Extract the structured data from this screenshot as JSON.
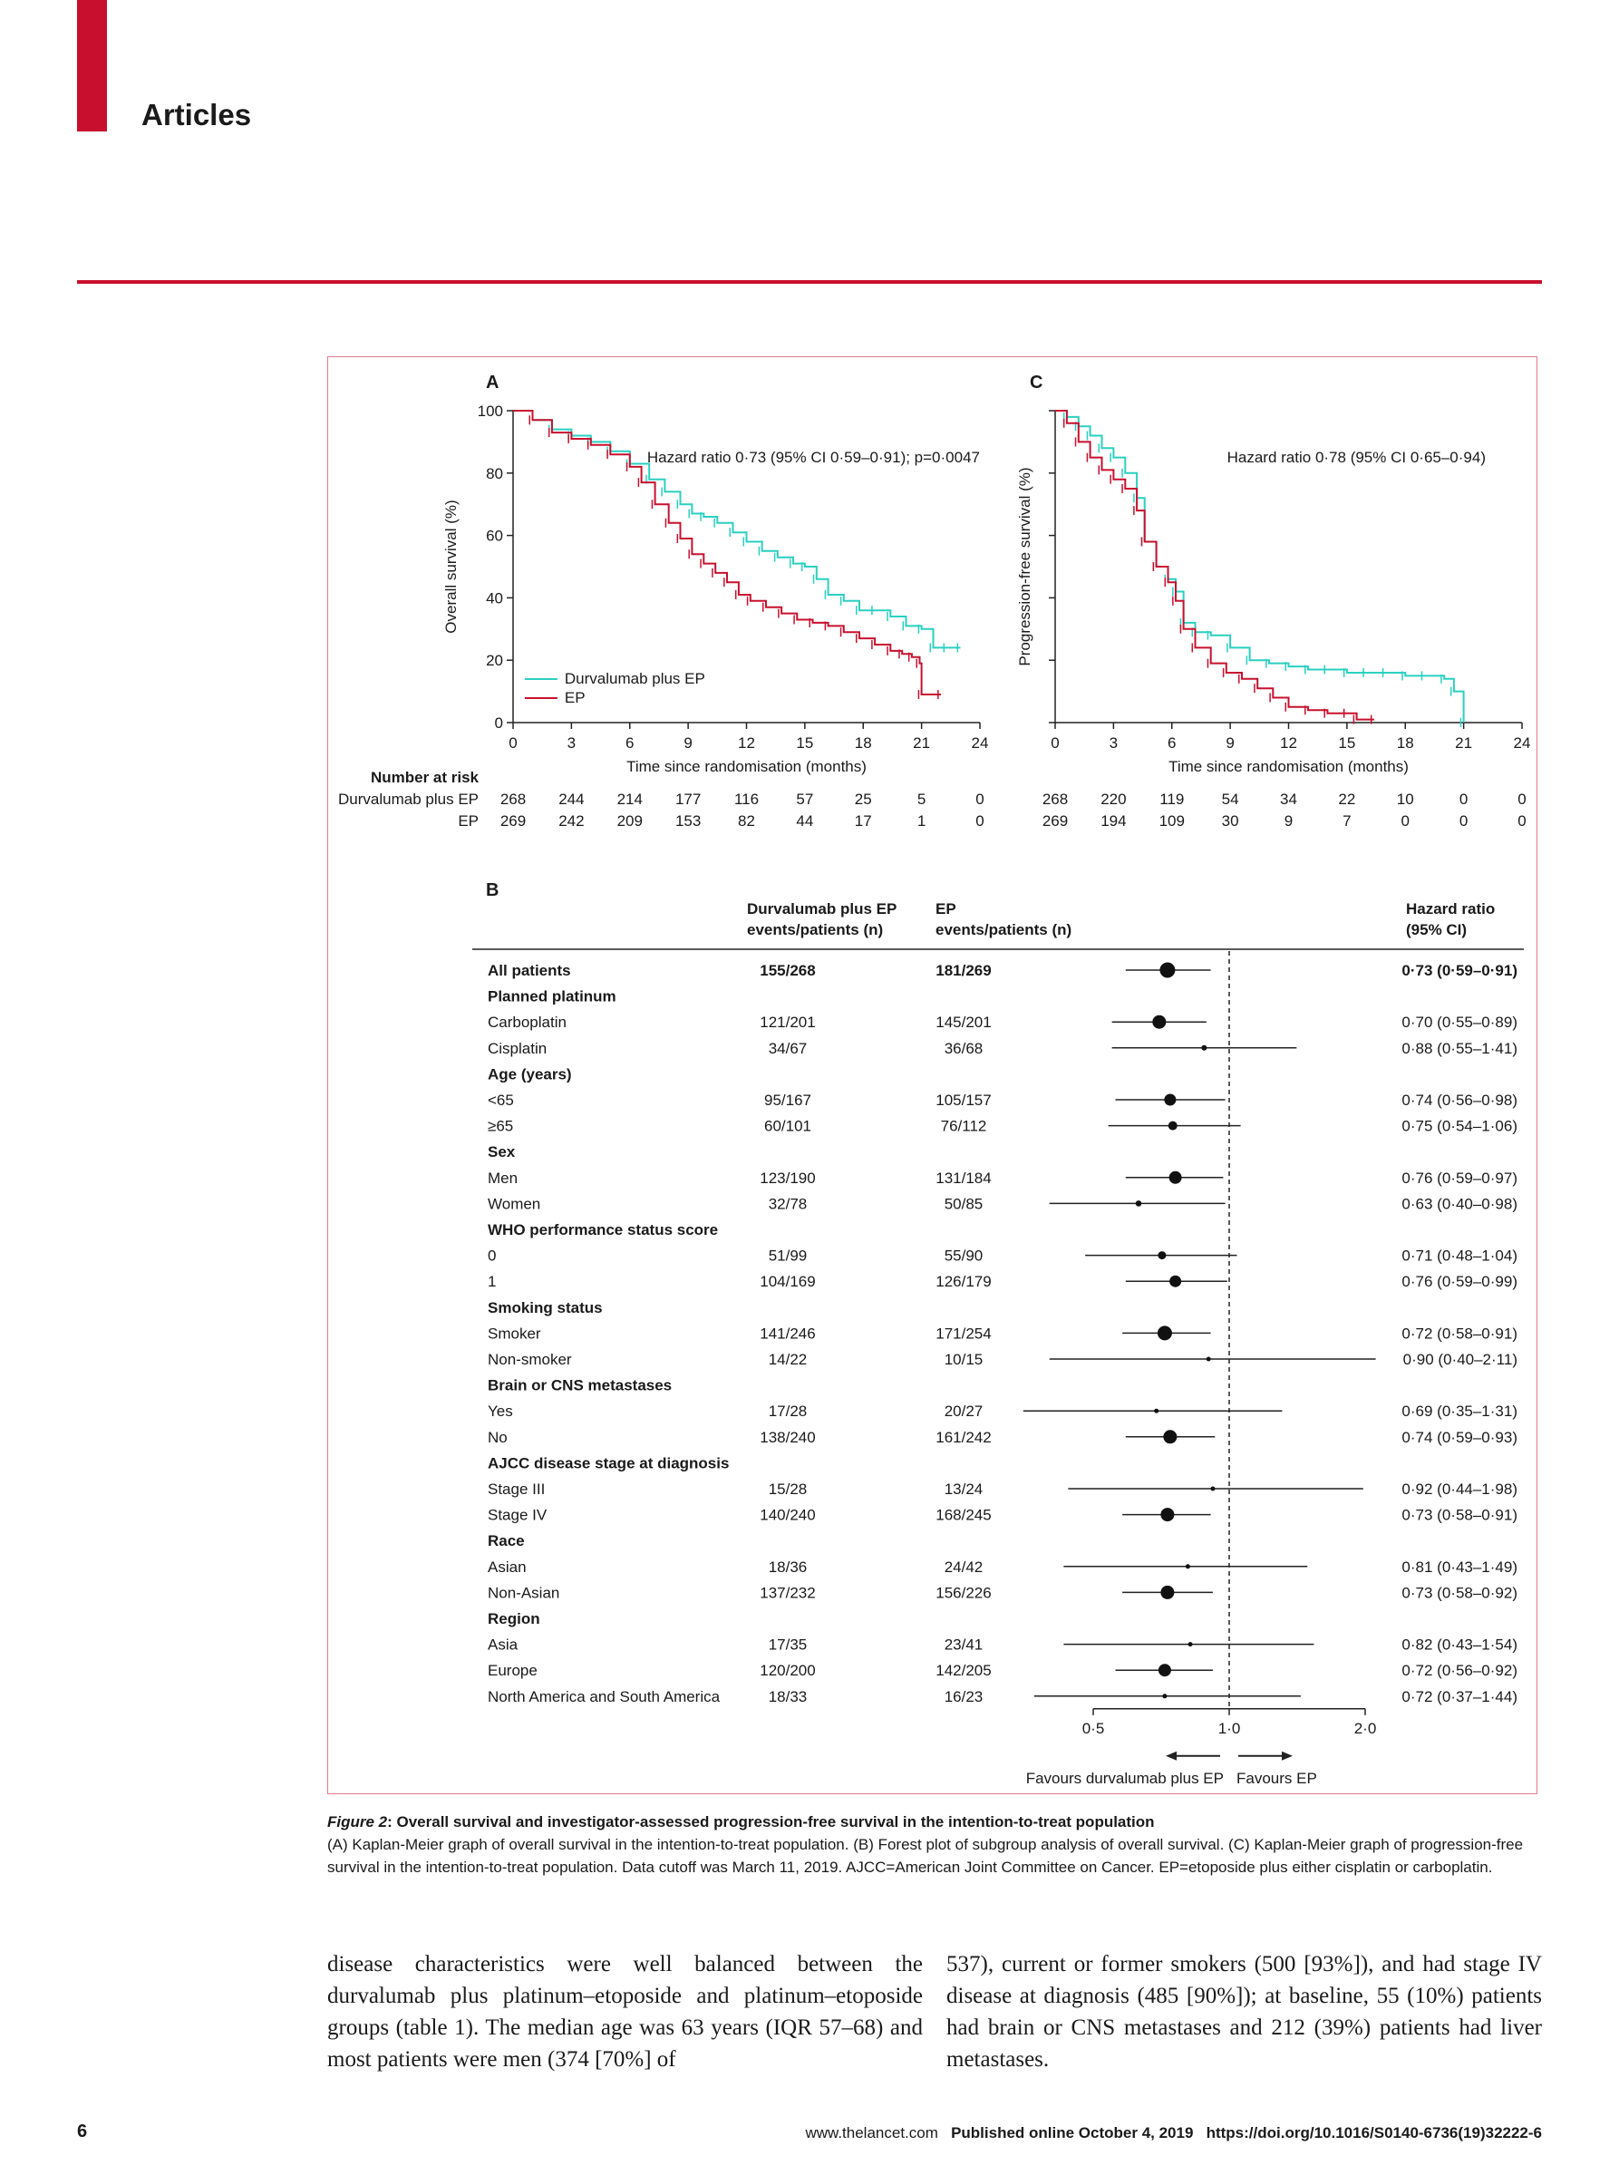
{
  "header": {
    "section": "Articles"
  },
  "panel_labels": {
    "a": "A",
    "b": "B",
    "c": "C"
  },
  "chart_data": [
    {
      "type": "line",
      "panel": "A",
      "ylabel": "Overall survival (%)",
      "xlabel": "Time since randomisation (months)",
      "xlim": [
        0,
        24
      ],
      "ylim": [
        0,
        100
      ],
      "xticks": [
        0,
        3,
        6,
        9,
        12,
        15,
        18,
        21,
        24
      ],
      "yticks": [
        0,
        20,
        40,
        60,
        80,
        100
      ],
      "annotation": "Hazard ratio 0·73 (95% CI 0·59–0·91); p=0·0047",
      "legend": {
        "placement": "bottom-left",
        "entries": [
          "Durvalumab plus EP",
          "EP"
        ]
      },
      "series": [
        {
          "name": "Durvalumab plus EP",
          "color": "#2ad0c0",
          "x": [
            0,
            1,
            2,
            3,
            4,
            5,
            6,
            7,
            7.8,
            8.6,
            9.2,
            9.8,
            10.5,
            11.3,
            12,
            12.8,
            13.6,
            14.4,
            15,
            15.6,
            16.2,
            17,
            17.8,
            18.6,
            19.4,
            20.2,
            21,
            21.6,
            22.3,
            23
          ],
          "y": [
            100,
            97,
            94,
            92,
            90,
            87,
            83,
            78,
            74,
            70,
            67,
            66,
            64,
            61,
            58,
            55,
            53,
            51,
            50,
            46,
            41,
            39,
            36,
            36,
            34,
            31,
            30,
            24,
            24,
            24
          ]
        },
        {
          "name": "EP",
          "color": "#c8102e",
          "x": [
            0,
            1,
            2,
            3,
            4,
            5,
            6,
            6.6,
            7.3,
            8,
            8.6,
            9.2,
            9.8,
            10.4,
            11,
            11.6,
            12.2,
            13,
            13.8,
            14.6,
            15.4,
            16.2,
            17,
            17.8,
            18.6,
            19.4,
            20,
            20.5,
            20.9,
            21,
            22
          ],
          "y": [
            100,
            97,
            93,
            91,
            89,
            86,
            82,
            77,
            70,
            64,
            59,
            54,
            51,
            48,
            45,
            41,
            39,
            37,
            35,
            33,
            32,
            31,
            29,
            27,
            25,
            23,
            22,
            21,
            19,
            9,
            9
          ]
        }
      ],
      "risk_table": {
        "header": "Number at risk",
        "rows": [
          {
            "label": "Durvalumab plus EP",
            "values": [
              "268",
              "244",
              "214",
              "177",
              "116",
              "57",
              "25",
              "5",
              "0"
            ]
          },
          {
            "label": "EP",
            "values": [
              "269",
              "242",
              "209",
              "153",
              "82",
              "44",
              "17",
              "1",
              "0"
            ]
          }
        ]
      }
    },
    {
      "type": "line",
      "panel": "C",
      "ylabel": "Progression-free survival (%)",
      "xlabel": "Time since randomisation (months)",
      "xlim": [
        0,
        24
      ],
      "ylim": [
        0,
        100
      ],
      "xticks": [
        0,
        3,
        6,
        9,
        12,
        15,
        18,
        21,
        24
      ],
      "yticks": [
        0,
        20,
        40,
        60,
        80,
        100
      ],
      "annotation": "Hazard ratio 0·78 (95% CI 0·65–0·94)",
      "series": [
        {
          "name": "Durvalumab plus EP",
          "color": "#2ad0c0",
          "x": [
            0,
            0.6,
            1.2,
            1.8,
            2.4,
            3,
            3.6,
            4.2,
            4.6,
            5.2,
            5.8,
            6.2,
            6.6,
            7.2,
            8,
            9,
            10,
            11,
            12,
            13,
            14,
            15,
            16,
            17,
            18,
            19,
            20,
            20.5,
            21
          ],
          "y": [
            100,
            98,
            95,
            92,
            88,
            85,
            80,
            72,
            58,
            50,
            46,
            42,
            32,
            29,
            28,
            24,
            20,
            19,
            18,
            17,
            17,
            16,
            16,
            16,
            15,
            15,
            14,
            10,
            0
          ]
        },
        {
          "name": "EP",
          "color": "#c8102e",
          "x": [
            0,
            0.6,
            1.2,
            1.8,
            2.4,
            3,
            3.6,
            4.2,
            4.6,
            5.2,
            5.8,
            6.2,
            6.6,
            7.2,
            8,
            8.8,
            9.6,
            10.4,
            11.2,
            12,
            13,
            14,
            15,
            15.5,
            16.4
          ],
          "y": [
            100,
            96,
            90,
            85,
            81,
            78,
            75,
            68,
            58,
            50,
            45,
            39,
            30,
            24,
            19,
            16,
            14,
            11,
            8,
            5,
            4,
            3,
            3,
            1,
            1
          ]
        }
      ],
      "risk_table": {
        "rows": [
          {
            "label": "Durvalumab plus EP",
            "values": [
              "268",
              "220",
              "119",
              "54",
              "34",
              "22",
              "10",
              "0",
              "0"
            ]
          },
          {
            "label": "EP",
            "values": [
              "269",
              "194",
              "109",
              "30",
              "9",
              "7",
              "0",
              "0",
              "0"
            ]
          }
        ]
      }
    },
    {
      "type": "table",
      "panel": "B",
      "subtype": "forest",
      "columns": {
        "c1a": "Durvalumab plus EP",
        "c1b": "events/patients (n)",
        "c2a": "EP",
        "c2b": "events/patients (n)",
        "c3a": "Hazard ratio",
        "c3b": "(95% CI)"
      },
      "xaxis": {
        "scale": "log",
        "ticks": [
          0.5,
          1.0,
          2.0
        ],
        "tick_labels": [
          "0·5",
          "1·0",
          "2·0"
        ],
        "reference": 1.0
      },
      "favours": {
        "left": "Favours durvalumab plus EP",
        "right": "Favours EP"
      },
      "rows": [
        {
          "label": "All patients",
          "type": "overall",
          "d": "155/268",
          "e": "181/269",
          "hr": 0.73,
          "lo": 0.59,
          "hi": 0.91,
          "text": "0·73 (0·59–0·91)",
          "w": 1.4
        },
        {
          "label": "Planned platinum",
          "type": "header"
        },
        {
          "label": "Carboplatin",
          "d": "121/201",
          "e": "145/201",
          "hr": 0.7,
          "lo": 0.55,
          "hi": 0.89,
          "text": "0·70 (0·55–0·89)",
          "w": 1.2
        },
        {
          "label": "Cisplatin",
          "d": "34/67",
          "e": "36/68",
          "hr": 0.88,
          "lo": 0.55,
          "hi": 1.41,
          "text": "0·88 (0·55–1·41)",
          "w": 0.3
        },
        {
          "label": "Age (years)",
          "type": "header"
        },
        {
          "label": "<65",
          "d": "95/167",
          "e": "105/157",
          "hr": 0.74,
          "lo": 0.56,
          "hi": 0.98,
          "text": "0·74 (0·56–0·98)",
          "w": 1.0
        },
        {
          "label": "≥65",
          "d": "60/101",
          "e": "76/112",
          "hr": 0.75,
          "lo": 0.54,
          "hi": 1.06,
          "text": "0·75 (0·54–1·06)",
          "w": 0.7
        },
        {
          "label": "Sex",
          "type": "header"
        },
        {
          "label": "Men",
          "d": "123/190",
          "e": "131/184",
          "hr": 0.76,
          "lo": 0.59,
          "hi": 0.97,
          "text": "0·76 (0·59–0·97)",
          "w": 1.1
        },
        {
          "label": "Women",
          "d": "32/78",
          "e": "50/85",
          "hr": 0.63,
          "lo": 0.4,
          "hi": 0.98,
          "text": "0·63 (0·40–0·98)",
          "w": 0.35
        },
        {
          "label": "WHO performance status score",
          "type": "header"
        },
        {
          "label": "0",
          "d": "51/99",
          "e": "55/90",
          "hr": 0.71,
          "lo": 0.48,
          "hi": 1.04,
          "text": "0·71 (0·48–1·04)",
          "w": 0.6
        },
        {
          "label": "1",
          "d": "104/169",
          "e": "126/179",
          "hr": 0.76,
          "lo": 0.59,
          "hi": 0.99,
          "text": "0·76 (0·59–0·99)",
          "w": 1.0
        },
        {
          "label": "Smoking status",
          "type": "header"
        },
        {
          "label": "Smoker",
          "d": "141/246",
          "e": "171/254",
          "hr": 0.72,
          "lo": 0.58,
          "hi": 0.91,
          "text": "0·72 (0·58–0·91)",
          "w": 1.3
        },
        {
          "label": "Non-smoker",
          "d": "14/22",
          "e": "10/15",
          "hr": 0.9,
          "lo": 0.4,
          "hi": 2.11,
          "text": "0·90 (0·40–2·11)",
          "w": 0.2
        },
        {
          "label": "Brain or CNS metastases",
          "type": "header"
        },
        {
          "label": "Yes",
          "d": "17/28",
          "e": "20/27",
          "hr": 0.69,
          "lo": 0.35,
          "hi": 1.31,
          "text": "0·69 (0·35–1·31)",
          "w": 0.2
        },
        {
          "label": "No",
          "d": "138/240",
          "e": "161/242",
          "hr": 0.74,
          "lo": 0.59,
          "hi": 0.93,
          "text": "0·74 (0·59–0·93)",
          "w": 1.2
        },
        {
          "label": "AJCC disease stage at diagnosis",
          "type": "header"
        },
        {
          "label": "Stage III",
          "d": "15/28",
          "e": "13/24",
          "hr": 0.92,
          "lo": 0.44,
          "hi": 1.98,
          "text": "0·92 (0·44–1·98)",
          "w": 0.2
        },
        {
          "label": "Stage IV",
          "d": "140/240",
          "e": "168/245",
          "hr": 0.73,
          "lo": 0.58,
          "hi": 0.91,
          "text": "0·73 (0·58–0·91)",
          "w": 1.2
        },
        {
          "label": "Race",
          "type": "header"
        },
        {
          "label": "Asian",
          "d": "18/36",
          "e": "24/42",
          "hr": 0.81,
          "lo": 0.43,
          "hi": 1.49,
          "text": "0·81 (0·43–1·49)",
          "w": 0.2
        },
        {
          "label": "Non-Asian",
          "d": "137/232",
          "e": "156/226",
          "hr": 0.73,
          "lo": 0.58,
          "hi": 0.92,
          "text": "0·73 (0·58–0·92)",
          "w": 1.2
        },
        {
          "label": "Region",
          "type": "header"
        },
        {
          "label": "Asia",
          "d": "17/35",
          "e": "23/41",
          "hr": 0.82,
          "lo": 0.43,
          "hi": 1.54,
          "text": "0·82 (0·43–1·54)",
          "w": 0.2
        },
        {
          "label": "Europe",
          "d": "120/200",
          "e": "142/205",
          "hr": 0.72,
          "lo": 0.56,
          "hi": 0.92,
          "text": "0·72 (0·56–0·92)",
          "w": 1.1
        },
        {
          "label": "North America and South America",
          "d": "18/33",
          "e": "16/23",
          "hr": 0.72,
          "lo": 0.37,
          "hi": 1.44,
          "text": "0·72 (0·37–1·44)",
          "w": 0.2
        }
      ]
    }
  ],
  "caption": {
    "title_prefix": "Figure 2",
    "title_rest": ": Overall survival and investigator-assessed progression-free survival in the intention-to-treat population",
    "body": "(A) Kaplan-Meier graph of overall survival in the intention-to-treat population. (B) Forest plot of subgroup analysis of overall survival. (C) Kaplan-Meier graph of progression-free survival in the intention-to-treat population. Data cutoff was March 11, 2019. AJCC=American Joint Committee on Cancer. EP=etoposide plus either cisplatin or carboplatin."
  },
  "body": {
    "col1": "disease characteristics were well balanced between the durvalumab plus platinum–etoposide and platinum–etoposide groups (table 1). The median age was 63 years (IQR 57–68) and most patients were men (374 [70%] of",
    "col2": "537), current or former smokers (500 [93%]), and had stage IV disease at diagnosis (485 [90%]); at baseline, 55 (10%) patients had brain or CNS metastases and 212 (39%) patients had liver metastases."
  },
  "footer": {
    "page": "6",
    "site": "www.thelancet.com",
    "published": "Published online October 4, 2019",
    "doi": "https://doi.org/10.1016/S0140-6736(19)32222-6"
  }
}
